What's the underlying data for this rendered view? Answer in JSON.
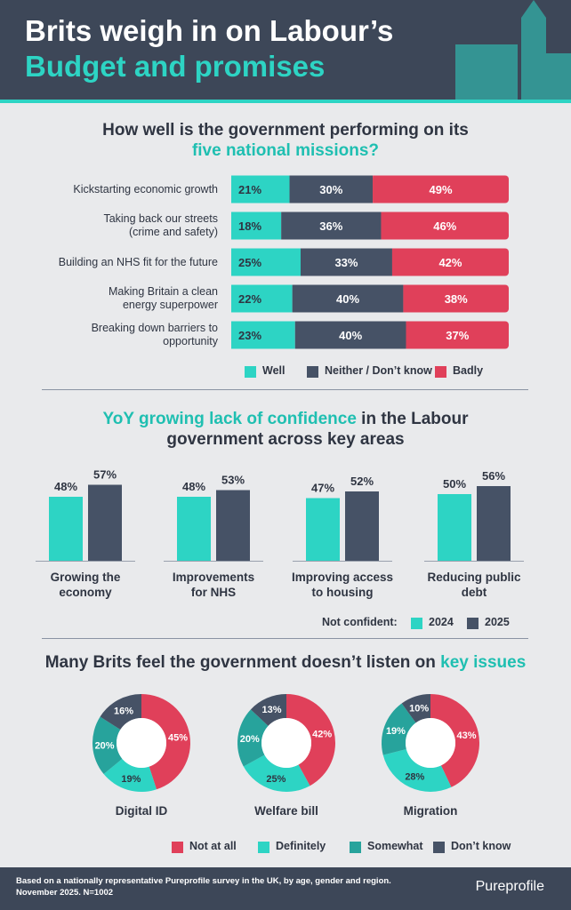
{
  "header": {
    "title": [
      {
        "text": "Brits weigh in on Labour’s",
        "color": "#ffffff"
      },
      {
        "text": "Budget and promises",
        "color": "#2dd4c4"
      }
    ]
  },
  "chart_data": [
    {
      "type": "stacked-bar",
      "title": [
        [
          {
            "text": "How well is the government performing on its",
            "color": "#2f3542"
          }
        ],
        [
          {
            "text": "five national missions?",
            "color": "#1fbfb1"
          }
        ]
      ],
      "categories": [
        "Kickstarting economic growth",
        "Taking back our streets\n(crime and safety)",
        "Building an NHS fit for the future",
        "Making Britain a clean\nenergy superpower",
        "Breaking down barriers to\nopportunity"
      ],
      "xlim": [
        0,
        100
      ],
      "series": [
        {
          "name": "Well",
          "color": "#2dd4c4",
          "values": [
            21,
            18,
            25,
            22,
            23
          ],
          "value_labels": [
            "21%",
            "18%",
            "25%",
            "22%",
            "23%"
          ]
        },
        {
          "name": "Neither / Don’t know",
          "color": "#465266",
          "values": [
            30,
            36,
            33,
            40,
            40
          ],
          "value_labels": [
            "30%",
            "36%",
            "33%",
            "40%",
            "40%"
          ]
        },
        {
          "name": "Badly",
          "color": "#e0405a",
          "values": [
            49,
            46,
            42,
            38,
            37
          ],
          "value_labels": [
            "49%",
            "46%",
            "42%",
            "38%",
            "37%"
          ]
        }
      ]
    },
    {
      "type": "grouped-bar",
      "title": [
        [
          {
            "text": "YoY growing lack of confidence",
            "color": "#1fbfb1"
          },
          {
            "text": " in the Labour",
            "color": "#2f3542"
          }
        ],
        [
          {
            "text": "government across key areas",
            "color": "#2f3542"
          }
        ]
      ],
      "categories": [
        "Growing the\neconomy",
        "Improvements\nfor NHS",
        "Improving access\nto housing",
        "Reducing public\ndebt"
      ],
      "ylim": [
        0,
        100
      ],
      "legend_title": "Not confident:",
      "series": [
        {
          "name": "2024",
          "color": "#2dd4c4",
          "values": [
            48,
            48,
            47,
            50
          ],
          "value_labels": [
            "48%",
            "48%",
            "47%",
            "50%"
          ]
        },
        {
          "name": "2025",
          "color": "#465266",
          "values": [
            57,
            53,
            52,
            56
          ],
          "value_labels": [
            "57%",
            "53%",
            "52%",
            "56%"
          ]
        }
      ]
    },
    {
      "type": "donut",
      "title": [
        [
          {
            "text": "Many Brits feel the government doesn’t listen on ",
            "color": "#2f3542"
          },
          {
            "text": "key issues",
            "color": "#1fbfb1"
          }
        ]
      ],
      "categories": [
        "Not at all",
        "Definitely",
        "Somewhat",
        "Don’t know"
      ],
      "colors": [
        "#e0405a",
        "#2dd4c4",
        "#27a39c",
        "#465266"
      ],
      "series": [
        {
          "name": "Digital ID",
          "values": [
            45,
            19,
            20,
            16
          ],
          "value_labels": [
            "45%",
            "19%",
            "20%",
            "16%"
          ]
        },
        {
          "name": "Welfare bill",
          "values": [
            42,
            25,
            20,
            13
          ],
          "value_labels": [
            "42%",
            "25%",
            "20%",
            "13%"
          ]
        },
        {
          "name": "Migration",
          "values": [
            43,
            28,
            19,
            10
          ],
          "value_labels": [
            "43%",
            "28%",
            "19%",
            "10%"
          ]
        }
      ]
    }
  ],
  "footer": {
    "lines": [
      "Based on a nationally representative Pureprofile survey in the UK, by age, gender and region.",
      "November 2025. N=1002"
    ],
    "brand": "Pureprofile"
  }
}
